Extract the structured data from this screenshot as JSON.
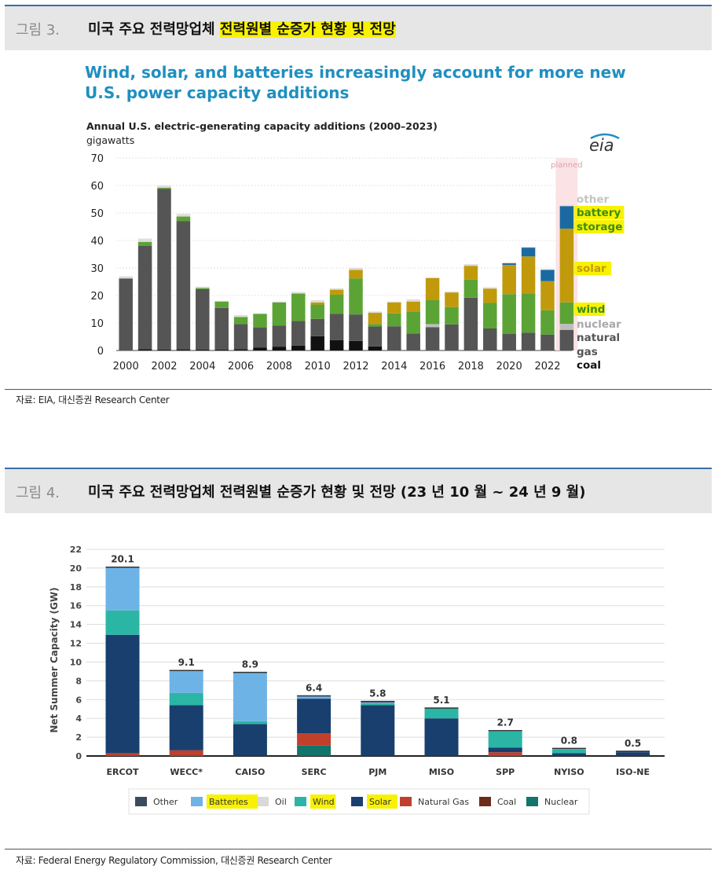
{
  "fig3": {
    "number": "그림 3.",
    "title_plain": "미국 주요 전력망업체 ",
    "title_highlight": "전력원별 순증가 현황 및 전망",
    "source": "자료: EIA, 대신증권 Research Center"
  },
  "fig4": {
    "number": "그림 4.",
    "title": "미국 주요 전력망업체 전력원별 순증가 현황 및 전망 (23 년 10 월 ~ 24 년 9 월)",
    "source": "자료: Federal Energy Regulatory Commission, 대신증권 Research Center"
  },
  "chart_data": [
    {
      "type": "bar",
      "stacked": true,
      "headline_line1": "Wind, solar, and batteries increasingly account for more new",
      "headline_line2": "U.S. power capacity additions",
      "title": "Annual U.S. electric-generating capacity additions (2000–2023)",
      "ylabel": "gigawatts",
      "logo": "eia",
      "planned_label": "planned",
      "ylim": [
        0,
        70
      ],
      "yticks": [
        "0",
        "10",
        "20",
        "30",
        "40",
        "50",
        "60",
        "70"
      ],
      "xtick_labels": [
        "2000",
        "2002",
        "2004",
        "2006",
        "2008",
        "2010",
        "2012",
        "2014",
        "2016",
        "2018",
        "2020",
        "2022"
      ],
      "categories": [
        "2000",
        "2001",
        "2002",
        "2003",
        "2004",
        "2005",
        "2006",
        "2007",
        "2008",
        "2009",
        "2010",
        "2011",
        "2012",
        "2013",
        "2014",
        "2015",
        "2016",
        "2017",
        "2018",
        "2019",
        "2020",
        "2021",
        "2022",
        "2023"
      ],
      "series": [
        {
          "name": "coal",
          "color": "#111111",
          "values": [
            0,
            0.5,
            0.3,
            0.4,
            0.3,
            0.3,
            0.5,
            1.0,
            1.4,
            1.8,
            5.2,
            3.8,
            3.5,
            1.5,
            0,
            0,
            0,
            0,
            0,
            0,
            0,
            0,
            0,
            0
          ]
        },
        {
          "name": "natural gas",
          "color": "#555555",
          "values": [
            26.2,
            37.5,
            58.5,
            46.7,
            22.0,
            15.2,
            9.1,
            7.4,
            7.7,
            8.9,
            6.3,
            9.5,
            9.6,
            7.2,
            8.8,
            6.2,
            8.5,
            9.5,
            19.2,
            8.0,
            6.0,
            6.5,
            5.8,
            7.5
          ]
        },
        {
          "name": "nuclear",
          "color": "#bdbdbd",
          "values": [
            0,
            0,
            0,
            0,
            0,
            0,
            0,
            0,
            0,
            0,
            0,
            0,
            0,
            0,
            0,
            0,
            1.1,
            0,
            0,
            0,
            0,
            0,
            0,
            2.2
          ]
        },
        {
          "name": "wind",
          "color": "#5ca335",
          "values": [
            0,
            1.5,
            0.4,
            1.6,
            0.4,
            2.3,
            2.6,
            4.9,
            8.4,
            10.0,
            5.2,
            7.0,
            13.1,
            0.9,
            4.7,
            8.0,
            8.8,
            6.3,
            6.6,
            9.3,
            14.5,
            14.3,
            8.8,
            7.8
          ]
        },
        {
          "name": "solar",
          "color": "#c19a0c",
          "values": [
            0,
            0,
            0,
            0,
            0,
            0,
            0,
            0,
            0,
            0,
            0.8,
            1.8,
            3.1,
            4.1,
            4.0,
            3.6,
            7.9,
            5.3,
            5.0,
            5.2,
            10.6,
            13.4,
            10.6,
            26.8
          ]
        },
        {
          "name": "battery storage",
          "color": "#1a6aa1",
          "values": [
            0,
            0,
            0,
            0,
            0,
            0,
            0,
            0,
            0,
            0,
            0,
            0,
            0,
            0,
            0,
            0,
            0,
            0,
            0,
            0,
            0.6,
            3.2,
            4.1,
            8.2
          ]
        },
        {
          "name": "other",
          "color": "#dedede",
          "values": [
            0.8,
            1.2,
            0.8,
            1.0,
            0.5,
            0.3,
            0.7,
            0.2,
            0.3,
            0.6,
            0.8,
            0.5,
            0.8,
            0.5,
            0.3,
            0.8,
            0.3,
            0.3,
            0.6,
            0.5,
            0.3,
            0.3,
            0.3,
            0.4
          ]
        }
      ],
      "legend": [
        "other",
        "battery",
        "storage",
        "solar",
        "wind",
        "nuclear",
        "natural",
        "gas",
        "coal"
      ]
    },
    {
      "type": "bar",
      "stacked": true,
      "ylabel": "Net Summer Capacity (GW)",
      "ylim": [
        0,
        22
      ],
      "yticks": [
        "0",
        "2",
        "4",
        "6",
        "8",
        "10",
        "12",
        "14",
        "16",
        "18",
        "20",
        "22"
      ],
      "categories": [
        "ERCOT",
        "WECC*",
        "CAISO",
        "SERC",
        "PJM",
        "MISO",
        "SPP",
        "NYISO",
        "ISO-NE"
      ],
      "totals": [
        "20.1",
        "9.1",
        "8.9",
        "6.4",
        "5.8",
        "5.1",
        "2.7",
        "0.8",
        "0.5"
      ],
      "series": [
        {
          "name": "Nuclear",
          "color": "#12756b",
          "values": [
            0,
            0,
            0,
            1.1,
            0,
            0,
            0,
            0,
            0
          ]
        },
        {
          "name": "Coal",
          "color": "#6e2a1a",
          "values": [
            0,
            0,
            0,
            0,
            0,
            0,
            0,
            0,
            0
          ]
        },
        {
          "name": "Natural Gas",
          "color": "#c0402b",
          "values": [
            0.3,
            0.6,
            0,
            1.3,
            0,
            0,
            0.4,
            0,
            0
          ]
        },
        {
          "name": "Solar",
          "color": "#183f6e",
          "values": [
            12.6,
            4.8,
            3.4,
            3.7,
            5.4,
            4.0,
            0.5,
            0.3,
            0.4
          ]
        },
        {
          "name": "Wind",
          "color": "#2bb5a5",
          "values": [
            2.6,
            1.3,
            0.3,
            0,
            0.2,
            1.1,
            1.7,
            0.4,
            0
          ]
        },
        {
          "name": "Oil",
          "color": "#d9d9d9",
          "values": [
            0,
            0,
            0,
            0,
            0,
            0,
            0,
            0,
            0
          ]
        },
        {
          "name": "Batteries",
          "color": "#6db3e6",
          "values": [
            4.6,
            2.4,
            5.2,
            0.3,
            0.1,
            0,
            0.1,
            0.1,
            0
          ]
        },
        {
          "name": "Other",
          "color": "#3b4a5e",
          "values": [
            0,
            0,
            0,
            0,
            0.1,
            0,
            0,
            0,
            0.1
          ]
        }
      ],
      "legend": [
        "Other",
        "Batteries",
        "Oil",
        "Wind",
        "Solar",
        "Natural Gas",
        "Coal",
        "Nuclear"
      ]
    }
  ]
}
